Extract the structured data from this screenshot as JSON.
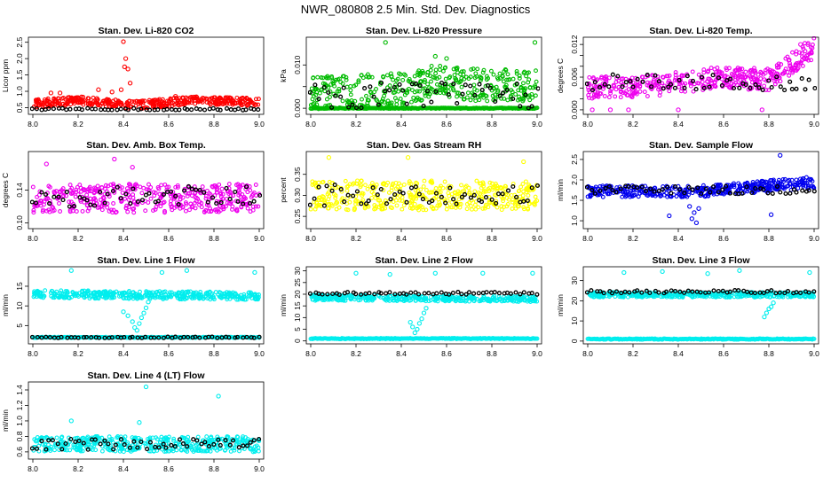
{
  "page_title": "NWR_080808  2.5 Min. Std. Dev. Diagnostics",
  "chart_data": [
    {
      "type": "scatter",
      "id": "li820-co2",
      "title": "Stan. Dev. Li-820 CO2",
      "xlabel": "",
      "ylabel": "Licor ppm",
      "xlim": [
        8.0,
        9.0
      ],
      "ylim": [
        0.35,
        2.6
      ],
      "xticks": [
        8.0,
        8.2,
        8.4,
        8.6,
        8.8,
        9.0
      ],
      "yticks": [
        0.5,
        1.0,
        1.5,
        2.0,
        2.5
      ],
      "ytick_labels": [
        "0.5",
        "1.0",
        "1.5",
        "2.0",
        "2.5"
      ],
      "color": "#ff0000",
      "series": [
        {
          "name": "main",
          "base": 0.62,
          "spread": 0.25,
          "trend": [
            [
              8.0,
              0.0
            ],
            [
              8.2,
              0.1
            ],
            [
              8.45,
              -0.05
            ],
            [
              8.7,
              0.1
            ],
            [
              9.0,
              0.05
            ]
          ],
          "outliers": [
            [
              8.4,
              2.52
            ],
            [
              8.41,
              2.0
            ],
            [
              8.42,
              1.68
            ],
            [
              8.405,
              1.75
            ],
            [
              8.43,
              1.25
            ],
            [
              8.39,
              1.05
            ],
            [
              8.08,
              0.95
            ],
            [
              8.12,
              0.95
            ],
            [
              8.29,
              1.05
            ],
            [
              8.63,
              0.85
            ],
            [
              8.35,
              0.98
            ]
          ]
        }
      ],
      "black": {
        "base": 0.45,
        "spread": 0.06
      }
    },
    {
      "type": "scatter",
      "id": "li820-pressure",
      "title": "Stan. Dev. Li-820 Pressure",
      "xlabel": "",
      "ylabel": "kPa",
      "xlim": [
        8.0,
        9.0
      ],
      "ylim": [
        -0.001,
        0.016
      ],
      "xticks": [
        8.0,
        8.2,
        8.4,
        8.6,
        8.8,
        9.0
      ],
      "yticks": [
        0.0,
        0.005,
        0.01
      ],
      "ytick_labels": [
        "0.000",
        "",
        "0.010"
      ],
      "color": "#00bb00",
      "series": [
        {
          "name": "main",
          "base": 0.0035,
          "spread": 0.0075,
          "trend": [
            [
              8.0,
              0.0
            ],
            [
              8.45,
              0.001
            ],
            [
              8.55,
              0.003
            ],
            [
              8.7,
              0.002
            ],
            [
              9.0,
              0.0015
            ]
          ],
          "outliers": [
            [
              8.33,
              0.0152
            ],
            [
              8.99,
              0.0152
            ],
            [
              8.55,
              0.012
            ],
            [
              8.6,
              0.0115
            ]
          ]
        },
        {
          "name": "floor",
          "level": 0.0,
          "density": 1.0
        }
      ],
      "black": {
        "base": 0.003,
        "spread": 0.006
      }
    },
    {
      "type": "scatter",
      "id": "li820-temp",
      "title": "Stan. Dev. Li-820 Temp.",
      "xlabel": "",
      "ylabel": "degrees C",
      "xlim": [
        8.0,
        9.0
      ],
      "ylim": [
        -0.0005,
        0.013
      ],
      "xticks": [
        8.0,
        8.2,
        8.4,
        8.6,
        8.8,
        9.0
      ],
      "yticks": [
        0.0,
        0.002,
        0.004,
        0.006,
        0.008,
        0.01,
        0.012
      ],
      "ytick_labels": [
        "0.000",
        "",
        "",
        "0.006",
        "",
        "",
        "0.012"
      ],
      "color": "#ee00ee",
      "series": [
        {
          "name": "main",
          "base": 0.0045,
          "spread": 0.004,
          "trend": [
            [
              8.0,
              -0.0005
            ],
            [
              8.3,
              0.0
            ],
            [
              8.6,
              0.0015
            ],
            [
              8.8,
              0.001
            ],
            [
              9.0,
              0.007
            ]
          ],
          "outliers": [
            [
              8.02,
              0.0
            ],
            [
              8.1,
              0.0
            ],
            [
              8.18,
              0.0
            ],
            [
              8.4,
              0.0
            ],
            [
              8.77,
              0.0
            ],
            [
              8.94,
              0.012
            ]
          ]
        }
      ],
      "black": {
        "base": 0.005,
        "spread": 0.003
      }
    },
    {
      "type": "scatter",
      "id": "amb-box-temp",
      "title": "Stan. Dev. Amb. Box Temp.",
      "xlabel": "",
      "ylabel": "degrees C",
      "xlim": [
        8.0,
        9.0
      ],
      "ylim": [
        0.095,
        0.185
      ],
      "xticks": [
        8.0,
        8.2,
        8.4,
        8.6,
        8.8,
        9.0
      ],
      "yticks": [
        0.1,
        0.14
      ],
      "ytick_labels": [
        "0.10",
        "0.14"
      ],
      "color": "#ee00ee",
      "series": [
        {
          "name": "main",
          "base": 0.13,
          "spread": 0.035,
          "trend": [
            [
              8.0,
              0.0
            ],
            [
              9.0,
              0.0
            ]
          ],
          "outliers": [
            [
              8.36,
              0.178
            ],
            [
              8.06,
              0.172
            ],
            [
              8.44,
              0.168
            ]
          ]
        }
      ],
      "black": {
        "base": 0.132,
        "spread": 0.025
      }
    },
    {
      "type": "scatter",
      "id": "gas-stream-rh",
      "title": "Stan. Dev. Gas Stream RH",
      "xlabel": "",
      "ylabel": "percent",
      "xlim": [
        8.0,
        9.0
      ],
      "ylim": [
        0.225,
        0.4
      ],
      "xticks": [
        8.0,
        8.2,
        8.4,
        8.6,
        8.8,
        9.0
      ],
      "yticks": [
        0.25,
        0.3,
        0.35
      ],
      "ytick_labels": [
        "0.25",
        "0.30",
        "0.35"
      ],
      "color": "#ffff00",
      "series": [
        {
          "name": "main",
          "base": 0.3,
          "spread": 0.07,
          "trend": [
            [
              8.0,
              0.0
            ],
            [
              9.0,
              0.0
            ]
          ],
          "outliers": [
            [
              8.08,
              0.39
            ],
            [
              8.43,
              0.39
            ],
            [
              8.94,
              0.38
            ]
          ]
        }
      ],
      "black": {
        "base": 0.3,
        "spread": 0.05
      }
    },
    {
      "type": "scatter",
      "id": "sample-flow",
      "title": "Stan. Dev. Sample Flow",
      "xlabel": "",
      "ylabel": "ml/min",
      "xlim": [
        8.0,
        9.0
      ],
      "ylim": [
        0.85,
        2.65
      ],
      "xticks": [
        8.0,
        8.2,
        8.4,
        8.6,
        8.8,
        9.0
      ],
      "yticks": [
        1.0,
        1.5,
        2.0,
        2.5
      ],
      "ytick_labels": [
        "1.0",
        "1.5",
        "2.0",
        "2.5"
      ],
      "color": "#0000ee",
      "series": [
        {
          "name": "main",
          "base": 1.72,
          "spread": 0.28,
          "trend": [
            [
              8.0,
              0.0
            ],
            [
              8.5,
              0.0
            ],
            [
              9.0,
              0.22
            ]
          ],
          "outliers": [
            [
              8.85,
              2.6
            ],
            [
              8.48,
              0.95
            ],
            [
              8.46,
              1.05
            ],
            [
              8.47,
              1.2
            ],
            [
              8.49,
              1.3
            ],
            [
              8.36,
              1.12
            ],
            [
              8.81,
              1.15
            ],
            [
              8.45,
              1.35
            ]
          ]
        }
      ],
      "black": {
        "base": 1.75,
        "spread": 0.2
      }
    },
    {
      "type": "scatter",
      "id": "line1-flow",
      "title": "Stan. Dev. Line 1 Flow",
      "xlabel": "",
      "ylabel": "ml/min",
      "xlim": [
        8.0,
        9.0
      ],
      "ylim": [
        0.8,
        19.5
      ],
      "xticks": [
        8.0,
        8.2,
        8.4,
        8.6,
        8.8,
        9.0
      ],
      "yticks": [
        5,
        10,
        15
      ],
      "ytick_labels": [
        "5",
        "10",
        "15"
      ],
      "color": "#00eeee",
      "series": [
        {
          "name": "upper",
          "base": 13.0,
          "spread": 2.0,
          "trend": [
            [
              8.0,
              0.0
            ],
            [
              9.0,
              -0.5
            ]
          ],
          "outliers": [
            [
              8.17,
              19.0
            ],
            [
              8.68,
              19.0
            ],
            [
              8.57,
              18.5
            ],
            [
              8.98,
              18.5
            ],
            [
              8.4,
              8.5
            ],
            [
              8.42,
              7.5
            ],
            [
              8.44,
              6.0
            ],
            [
              8.45,
              4.5
            ],
            [
              8.46,
              3.8
            ],
            [
              8.47,
              5.5
            ],
            [
              8.48,
              7.0
            ],
            [
              8.49,
              8.2
            ],
            [
              8.5,
              9.5
            ],
            [
              8.51,
              11.0
            ]
          ]
        },
        {
          "name": "lower",
          "level": 2.0,
          "density": 1.0
        }
      ],
      "black": {
        "base": 2.0,
        "spread": 0.3
      }
    },
    {
      "type": "scatter",
      "id": "line2-flow",
      "title": "Stan. Dev. Line 2 Flow",
      "xlabel": "",
      "ylabel": "ml/min",
      "xlim": [
        8.0,
        9.0
      ],
      "ylim": [
        -0.5,
        31
      ],
      "xticks": [
        8.0,
        8.2,
        8.4,
        8.6,
        8.8,
        9.0
      ],
      "yticks": [
        0,
        5,
        10,
        15,
        20,
        25,
        30
      ],
      "ytick_labels": [
        "0",
        "5",
        "10",
        "15",
        "20",
        "25",
        "30"
      ],
      "color": "#00eeee",
      "series": [
        {
          "name": "upper",
          "base": 18.5,
          "spread": 2.5,
          "trend": [
            [
              8.0,
              0.0
            ],
            [
              9.0,
              -0.5
            ]
          ],
          "outliers": [
            [
              8.2,
              29.0
            ],
            [
              8.35,
              28.5
            ],
            [
              8.55,
              29.0
            ],
            [
              8.76,
              29.0
            ],
            [
              8.98,
              29.0
            ],
            [
              8.44,
              8.0
            ],
            [
              8.45,
              6.0
            ],
            [
              8.46,
              3.5
            ],
            [
              8.47,
              5.0
            ],
            [
              8.48,
              7.5
            ],
            [
              8.49,
              9.5
            ],
            [
              8.5,
              12.0
            ],
            [
              8.51,
              14.0
            ]
          ]
        },
        {
          "name": "lower",
          "level": 1.0,
          "density": 1.0
        }
      ],
      "black": {
        "base": 20.3,
        "spread": 1.2
      }
    },
    {
      "type": "scatter",
      "id": "line3-flow",
      "title": "Stan. Dev. Line 3 Flow",
      "xlabel": "",
      "ylabel": "ml/min",
      "xlim": [
        8.0,
        9.0
      ],
      "ylim": [
        -0.5,
        36
      ],
      "xticks": [
        8.0,
        8.2,
        8.4,
        8.6,
        8.8,
        9.0
      ],
      "yticks": [
        0,
        10,
        20,
        30
      ],
      "ytick_labels": [
        "0",
        "10",
        "20",
        "30"
      ],
      "color": "#00eeee",
      "series": [
        {
          "name": "upper",
          "base": 23.0,
          "spread": 2.5,
          "trend": [
            [
              8.0,
              0.0
            ],
            [
              9.0,
              0.0
            ]
          ],
          "outliers": [
            [
              8.16,
              34.0
            ],
            [
              8.33,
              34.5
            ],
            [
              8.53,
              33.5
            ],
            [
              8.67,
              35.0
            ],
            [
              8.98,
              34.0
            ],
            [
              8.78,
              12.0
            ],
            [
              8.79,
              14.0
            ],
            [
              8.8,
              16.0
            ],
            [
              8.81,
              17.0
            ],
            [
              8.82,
              19.0
            ]
          ]
        },
        {
          "name": "lower",
          "level": 1.0,
          "density": 1.0
        }
      ],
      "black": {
        "base": 24.5,
        "spread": 1.5
      }
    },
    {
      "type": "scatter",
      "id": "line4-flow",
      "title": "Stan. Dev. Line 4 (LT) Flow",
      "xlabel": "",
      "ylabel": "ml/min",
      "xlim": [
        8.0,
        9.0
      ],
      "ylim": [
        0.53,
        1.48
      ],
      "xticks": [
        8.0,
        8.2,
        8.4,
        8.6,
        8.8,
        9.0
      ],
      "yticks": [
        0.6,
        0.8,
        1.0,
        1.2,
        1.4
      ],
      "ytick_labels": [
        "0.6",
        "0.8",
        "1.0",
        "1.2",
        "1.4"
      ],
      "color": "#00eeee",
      "series": [
        {
          "name": "main",
          "base": 0.7,
          "spread": 0.2,
          "trend": [
            [
              8.0,
              0.0
            ],
            [
              9.0,
              0.0
            ]
          ],
          "outliers": [
            [
              8.17,
              1.0
            ],
            [
              8.5,
              1.44
            ],
            [
              8.82,
              1.32
            ],
            [
              8.47,
              0.98
            ]
          ]
        }
      ],
      "black": {
        "base": 0.7,
        "spread": 0.14
      }
    }
  ]
}
